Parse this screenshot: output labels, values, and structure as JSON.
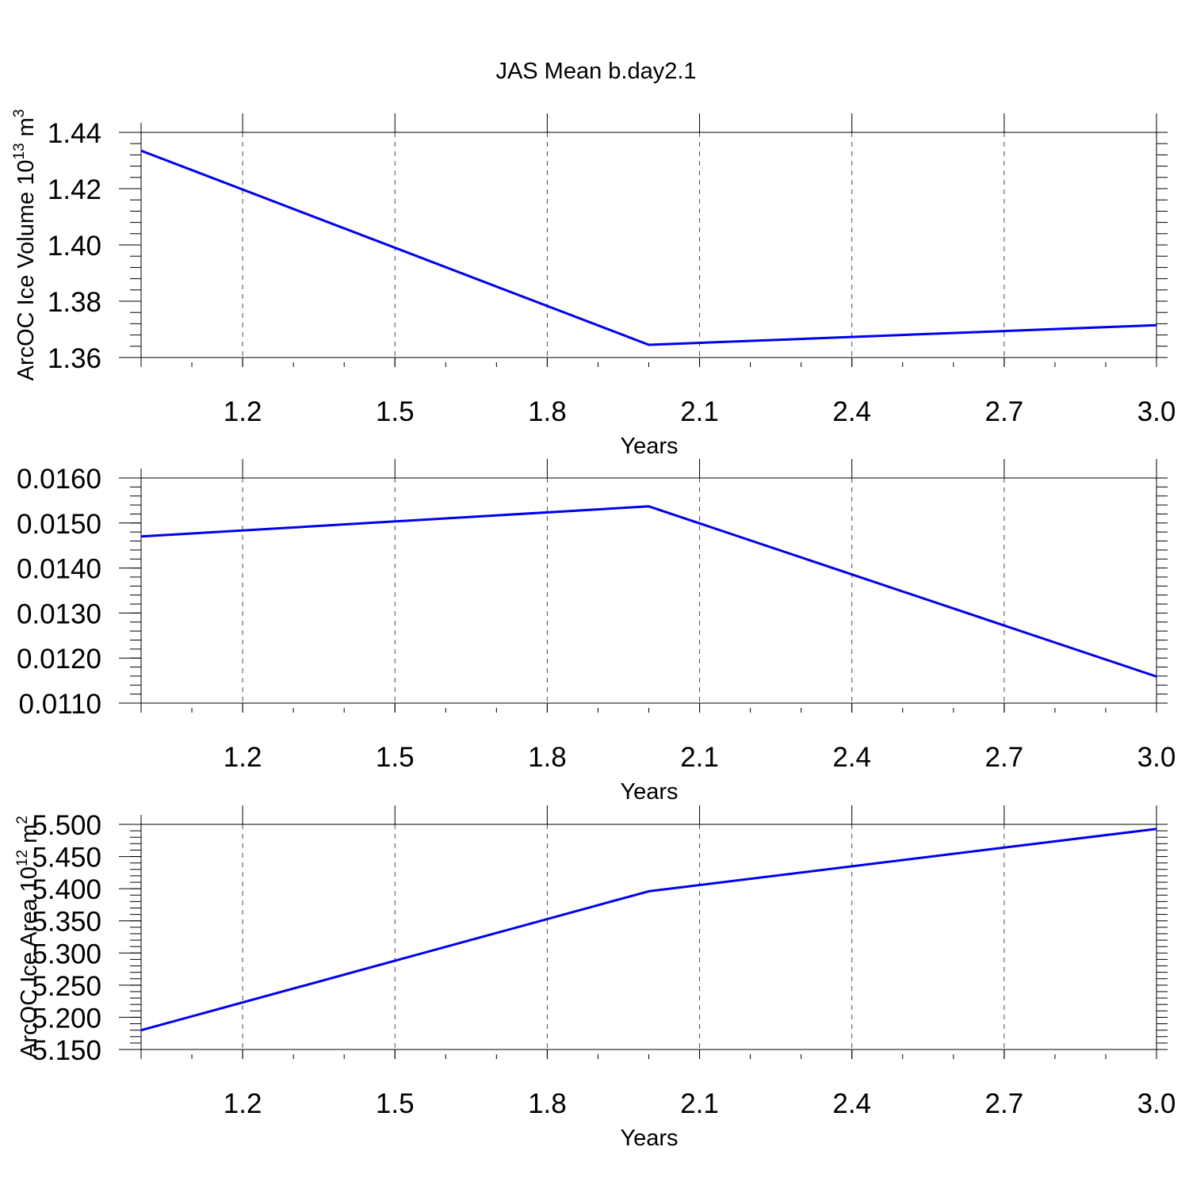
{
  "chart_data": [
    {
      "type": "line",
      "title": "JAS Mean b.day2.1",
      "xlabel": "Years",
      "ylabel": "ArcOC Ice Volume 10",
      "ylabel_exponent": "13",
      "ylabel_unit": " m",
      "ylabel_unit_exponent": "3",
      "x": [
        1.0,
        2.0,
        3.0
      ],
      "series": [
        {
          "values": [
            1.4335,
            1.3645,
            1.3715
          ]
        }
      ],
      "xlim": [
        1.0,
        3.0
      ],
      "ylim": [
        1.36,
        1.44
      ],
      "xticks": [
        "1.2",
        "1.5",
        "1.8",
        "2.1",
        "2.4",
        "2.7",
        "3.0"
      ],
      "yticks": [
        "1.36",
        "1.38",
        "1.40",
        "1.42",
        "1.44"
      ],
      "line_color": "#0000ee",
      "grid": "x-dashed"
    },
    {
      "type": "line",
      "title": "",
      "xlabel": "Years",
      "ylabel": "",
      "x": [
        1.0,
        2.0,
        3.0
      ],
      "series": [
        {
          "values": [
            0.0147,
            0.01537,
            0.01159
          ]
        }
      ],
      "xlim": [
        1.0,
        3.0
      ],
      "ylim": [
        0.011,
        0.016
      ],
      "xticks": [
        "1.2",
        "1.5",
        "1.8",
        "2.1",
        "2.4",
        "2.7",
        "3.0"
      ],
      "yticks": [
        "0.0110",
        "0.0120",
        "0.0130",
        "0.0140",
        "0.0150",
        "0.0160"
      ],
      "line_color": "#0000ee",
      "grid": "x-dashed"
    },
    {
      "type": "line",
      "title": "",
      "xlabel": "Years",
      "ylabel": "ArcOC Ice Area 10",
      "ylabel_exponent": "12",
      "ylabel_unit": " m",
      "ylabel_unit_exponent": "2",
      "x": [
        1.0,
        2.0,
        3.0
      ],
      "series": [
        {
          "values": [
            5.18,
            5.396,
            5.493
          ]
        }
      ],
      "xlim": [
        1.0,
        3.0
      ],
      "ylim": [
        5.15,
        5.5
      ],
      "xticks": [
        "1.2",
        "1.5",
        "1.8",
        "2.1",
        "2.4",
        "2.7",
        "3.0"
      ],
      "yticks": [
        "5.150",
        "5.200",
        "5.250",
        "5.300",
        "5.350",
        "5.400",
        "5.450",
        "5.500"
      ],
      "line_color": "#0000ee",
      "grid": "x-dashed"
    }
  ]
}
